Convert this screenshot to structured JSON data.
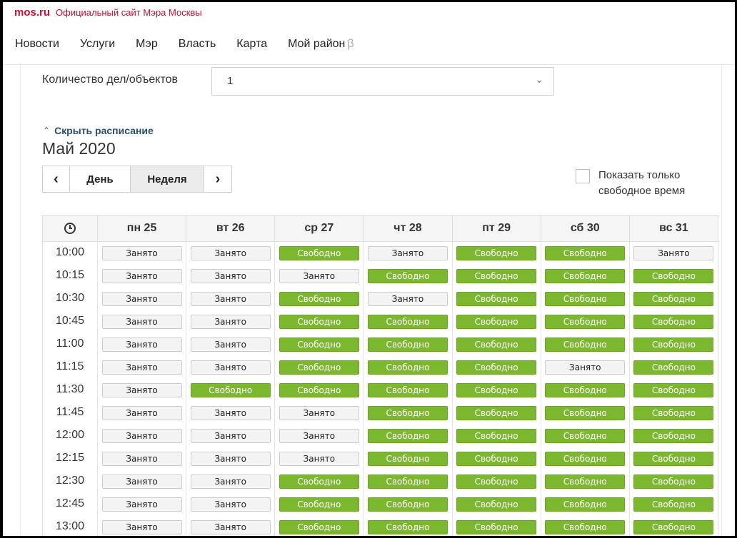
{
  "header": {
    "logo": "mos.ru",
    "subtitle": "Официальный сайт Мэра Москвы",
    "nav": [
      "Новости",
      "Услуги",
      "Мэр",
      "Власть",
      "Карта",
      "Мой район"
    ],
    "beta_mark": "β"
  },
  "form": {
    "quantity_label": "Количество дел/объектов",
    "quantity_value": "1"
  },
  "schedule": {
    "hide_label": "Скрыть расписание",
    "month": "Май 2020",
    "view_day": "День",
    "view_week": "Неделя",
    "prev": "‹",
    "next": "›",
    "free_only_label": "Показать только свободное время",
    "free_only_checked": false,
    "days": [
      "пн 25",
      "вт 26",
      "ср 27",
      "чт 28",
      "пт 29",
      "сб 30",
      "вс 31"
    ],
    "busy_label": "Занято",
    "free_label": "Свободно",
    "colors": {
      "free": "#7cb82f",
      "busy": "#f3f3f3"
    },
    "rows": [
      {
        "time": "10:00",
        "slots": [
          "Занято",
          "Занято",
          "Свободно",
          "Занято",
          "Свободно",
          "Свободно",
          "Занято"
        ]
      },
      {
        "time": "10:15",
        "slots": [
          "Занято",
          "Занято",
          "Занято",
          "Свободно",
          "Свободно",
          "Свободно",
          "Свободно"
        ]
      },
      {
        "time": "10:30",
        "slots": [
          "Занято",
          "Занято",
          "Свободно",
          "Занято",
          "Свободно",
          "Свободно",
          "Свободно"
        ]
      },
      {
        "time": "10:45",
        "slots": [
          "Занято",
          "Занято",
          "Свободно",
          "Свободно",
          "Свободно",
          "Свободно",
          "Свободно"
        ]
      },
      {
        "time": "11:00",
        "slots": [
          "Занято",
          "Занято",
          "Свободно",
          "Свободно",
          "Свободно",
          "Свободно",
          "Свободно"
        ]
      },
      {
        "time": "11:15",
        "slots": [
          "Занято",
          "Занято",
          "Свободно",
          "Свободно",
          "Свободно",
          "Занято",
          "Свободно"
        ]
      },
      {
        "time": "11:30",
        "slots": [
          "Занято",
          "Свободно",
          "Свободно",
          "Свободно",
          "Свободно",
          "Свободно",
          "Свободно"
        ]
      },
      {
        "time": "11:45",
        "slots": [
          "Занято",
          "Занято",
          "Занято",
          "Свободно",
          "Свободно",
          "Свободно",
          "Свободно"
        ]
      },
      {
        "time": "12:00",
        "slots": [
          "Занято",
          "Занято",
          "Занято",
          "Свободно",
          "Свободно",
          "Свободно",
          "Свободно"
        ]
      },
      {
        "time": "12:15",
        "slots": [
          "Занято",
          "Занято",
          "Занято",
          "Свободно",
          "Свободно",
          "Свободно",
          "Свободно"
        ]
      },
      {
        "time": "12:30",
        "slots": [
          "Занято",
          "Занято",
          "Свободно",
          "Свободно",
          "Свободно",
          "Свободно",
          "Свободно"
        ]
      },
      {
        "time": "12:45",
        "slots": [
          "Занято",
          "Занято",
          "Свободно",
          "Свободно",
          "Свободно",
          "Свободно",
          "Свободно"
        ]
      },
      {
        "time": "13:00",
        "slots": [
          "Занято",
          "Занято",
          "Свободно",
          "Свободно",
          "Свободно",
          "Свободно",
          "Свободно"
        ]
      }
    ]
  }
}
